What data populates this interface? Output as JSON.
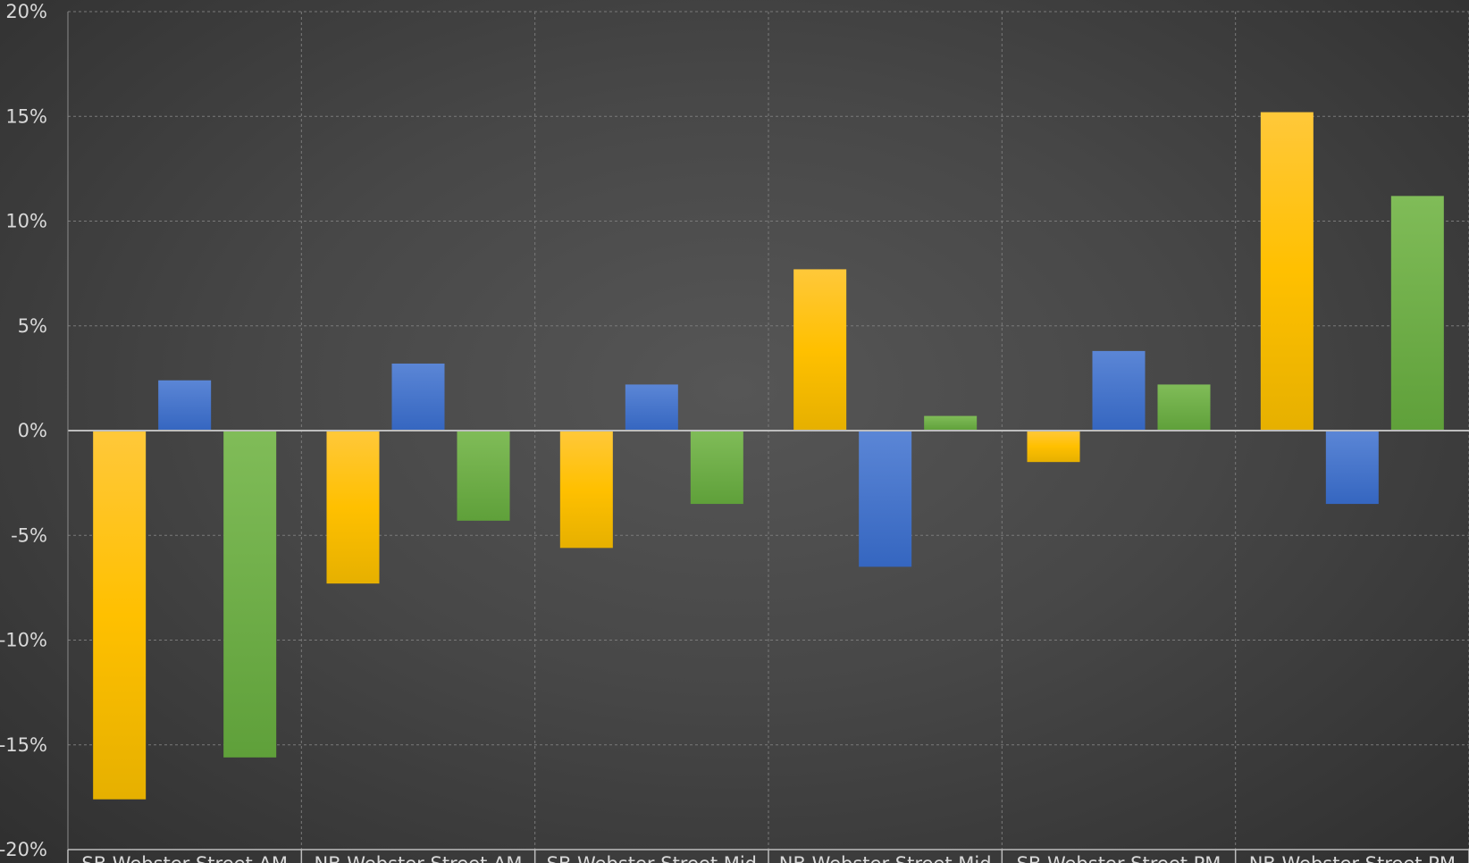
{
  "chart_data": {
    "type": "bar",
    "title": "",
    "xlabel": "",
    "ylabel": "",
    "ylim": [
      -20,
      20
    ],
    "ytick_values": [
      20,
      15,
      10,
      5,
      0,
      -5,
      -10,
      -15,
      -20
    ],
    "ytick_labels": [
      "20%",
      "15%",
      "10%",
      "5%",
      "0%",
      "-5%",
      "-10%",
      "-15%",
      "-20%"
    ],
    "categories": [
      "SB Webster Street AM",
      "NB Webster Street AM",
      "SB Webster Street Mid",
      "NB Webster Street Mid",
      "SB Webster Street PM",
      "NB Webster Street PM"
    ],
    "series": [
      {
        "color": "#FFC000",
        "values": [
          -17.6,
          -7.3,
          -5.6,
          7.7,
          -1.5,
          15.2
        ]
      },
      {
        "color": "#4472C4",
        "values": [
          2.4,
          3.2,
          2.2,
          -6.5,
          3.8,
          -3.5
        ]
      },
      {
        "color": "#70AD47",
        "values": [
          -15.6,
          -4.3,
          -3.5,
          0.7,
          2.2,
          11.2
        ]
      }
    ],
    "grid": true,
    "legend": "none"
  }
}
